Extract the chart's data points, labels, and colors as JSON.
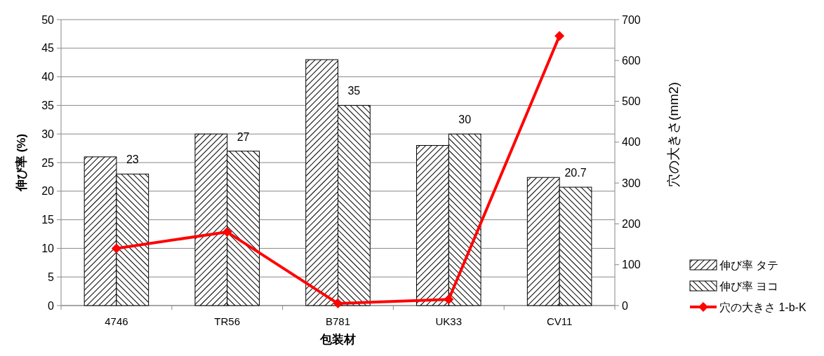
{
  "chart_data": {
    "type": "bar",
    "xlabel": "包装材",
    "ylabel": "伸び率 (%)",
    "y2label": "穴の大きさ(mm2)",
    "categories": [
      "4746",
      "TR56",
      "B781",
      "UK33",
      "CV11"
    ],
    "series": [
      {
        "name": "伸び率 タテ",
        "color": "#000000",
        "values": [
          26,
          30,
          43,
          28,
          22.4
        ]
      },
      {
        "name": "伸び率 ヨコ",
        "color": "#000000",
        "values": [
          23,
          27,
          35,
          30,
          20.7
        ],
        "value_labels": [
          "23",
          "27",
          "35",
          "30",
          "20.7"
        ]
      },
      {
        "name": "穴の大きさ 1-b-K",
        "type": "line",
        "axis": "y2",
        "color": "#ff0000",
        "marker": "diamond",
        "values": [
          140,
          180,
          5,
          15,
          660
        ]
      }
    ],
    "ylim": [
      0,
      50
    ],
    "yticks": [
      0,
      5,
      10,
      15,
      20,
      25,
      30,
      35,
      40,
      45,
      50
    ],
    "y2lim": [
      0,
      700
    ],
    "y2ticks": [
      0,
      100,
      200,
      300,
      400,
      500,
      600,
      700
    ],
    "grid": "y",
    "legend": "bottom right"
  }
}
